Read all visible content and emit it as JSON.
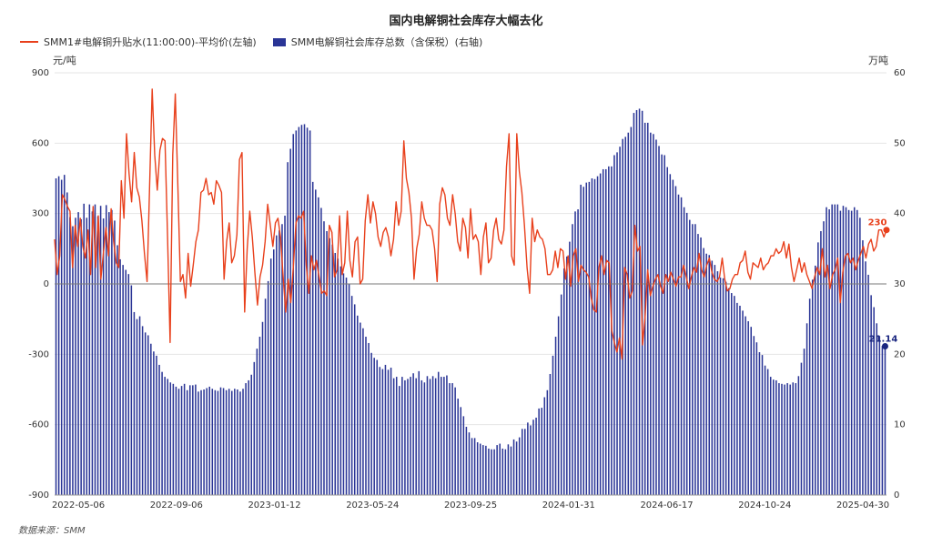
{
  "chart_data": {
    "type": "bar-line",
    "title": "国内电解铜社会库存大幅去化",
    "legend": [
      {
        "name": "SMM1#电解铜升贴水(11:00:00)-平均价(左轴)",
        "color": "#e8401c",
        "kind": "line"
      },
      {
        "name": "SMM电解铜社会库存总数（含保税）(右轴)",
        "color": "#2a3596",
        "kind": "bar"
      }
    ],
    "left_unit": "元/吨",
    "right_unit": "万吨",
    "left_ylim": [
      -900,
      900
    ],
    "right_ylim": [
      0,
      60
    ],
    "left_ticks": [
      "900",
      "600",
      "300",
      "0",
      "-300",
      "-600",
      "-900"
    ],
    "right_ticks": [
      "60",
      "50",
      "40",
      "30",
      "20",
      "10",
      "0"
    ],
    "x_labels": [
      "2022-05-06",
      "2022-09-06",
      "2023-01-12",
      "2023-05-24",
      "2023-09-25",
      "2024-01-31",
      "2024-06-17",
      "2024-10-24",
      "2025-04-30"
    ],
    "last_line_value": "230",
    "last_bar_value": "21.14",
    "line_series_name": "SMM1#电解铜升贴水(11:00:00)-平均价(左轴)",
    "line_values": [
      190,
      40,
      120,
      380,
      360,
      330,
      310,
      70,
      250,
      160,
      280,
      160,
      110,
      230,
      40,
      330,
      70,
      290,
      20,
      130,
      240,
      120,
      320,
      180,
      90,
      70,
      440,
      280,
      640,
      470,
      350,
      560,
      410,
      370,
      270,
      130,
      10,
      420,
      830,
      550,
      400,
      570,
      620,
      610,
      200,
      -250,
      550,
      810,
      420,
      10,
      40,
      -60,
      130,
      -10,
      80,
      180,
      230,
      390,
      400,
      450,
      380,
      390,
      340,
      440,
      420,
      390,
      20,
      180,
      260,
      90,
      120,
      210,
      530,
      560,
      -120,
      150,
      310,
      200,
      50,
      -90,
      30,
      80,
      180,
      340,
      250,
      160,
      260,
      280,
      200,
      30,
      -120,
      20,
      -80,
      80,
      260,
      290,
      280,
      310,
      80,
      -40,
      120,
      60,
      100,
      30,
      -40,
      -30,
      -50,
      250,
      220,
      30,
      60,
      290,
      40,
      90,
      310,
      100,
      30,
      180,
      200,
      0,
      20,
      270,
      380,
      260,
      350,
      300,
      200,
      160,
      220,
      240,
      200,
      120,
      190,
      350,
      250,
      310,
      610,
      450,
      390,
      280,
      20,
      150,
      210,
      350,
      280,
      250,
      250,
      230,
      150,
      10,
      340,
      410,
      380,
      280,
      250,
      380,
      300,
      180,
      140,
      280,
      240,
      110,
      320,
      190,
      210,
      180,
      40,
      200,
      260,
      90,
      110,
      230,
      280,
      190,
      170,
      230,
      500,
      640,
      120,
      80,
      640,
      480,
      390,
      250,
      70,
      -40,
      280,
      180,
      230,
      200,
      190,
      150,
      40,
      40,
      60,
      140,
      70,
      150,
      140,
      20,
      120,
      -10,
      120,
      150,
      10,
      80,
      60,
      50,
      30,
      -60,
      -110,
      -120,
      70,
      120,
      40,
      100,
      90,
      -200,
      -250,
      -290,
      -230,
      -320,
      70,
      40,
      -60,
      -30,
      250,
      140,
      160,
      -260,
      -140,
      60,
      -50,
      -10,
      20,
      40,
      -10,
      -40,
      40,
      10,
      50,
      20,
      -10,
      30,
      30,
      80,
      30,
      -20,
      30,
      70,
      50,
      130,
      60,
      30,
      80,
      110,
      50,
      20,
      10,
      30,
      110,
      20,
      -30,
      -20,
      20,
      40,
      40,
      90,
      100,
      140,
      50,
      20,
      90,
      80,
      70,
      110,
      60,
      80,
      90,
      120,
      120,
      150,
      130,
      140,
      180,
      110,
      170,
      70,
      10,
      60,
      110,
      50,
      90,
      40,
      10,
      -20,
      30,
      70,
      40,
      150,
      30,
      80,
      -20,
      40,
      60,
      110,
      -80,
      50,
      120,
      130,
      90,
      110,
      60,
      100,
      130,
      160,
      110,
      170,
      190,
      140,
      160,
      230,
      230,
      200,
      230
    ],
    "bar_series_name": "SMM电解铜社会库存总数（含保税）(右轴)",
    "bar_values": [
      45,
      45.3,
      44.8,
      45.5,
      43,
      39.5,
      38.2,
      39.4,
      40.2,
      39.2,
      41.4,
      39.4,
      41.3,
      40.3,
      41.3,
      39.6,
      41.1,
      39.3,
      41.2,
      40.2,
      40.5,
      39,
      35.5,
      33.5,
      32.7,
      32,
      31.4,
      29.8,
      26,
      25,
      25.4,
      24,
      23.1,
      22.7,
      21.5,
      20.4,
      19.8,
      18.5,
      17.5,
      16.8,
      16.5,
      16,
      15.8,
      15.4,
      15.1,
      15.5,
      15.8,
      14.9,
      15.6,
      15.6,
      15.7,
      14.7,
      14.9,
      15,
      15.2,
      15.4,
      15.1,
      14.9,
      14.8,
      15.3,
      15.2,
      14.9,
      15.1,
      14.8,
      15.1,
      15,
      14.7,
      15.1,
      15.9,
      16.3,
      17.1,
      18.9,
      20.8,
      22.5,
      24.6,
      27.9,
      30.4,
      33.6,
      34.9,
      36.9,
      37.6,
      38.5,
      39.7,
      47.3,
      49.2,
      51.3,
      51.8,
      52.3,
      52.6,
      52.7,
      52.2,
      51.8,
      44.5,
      43.4,
      42.3,
      40.8,
      38.9,
      37.5,
      36.5,
      35.6,
      34.4,
      33.6,
      32.5,
      31.5,
      30.9,
      30,
      28.3,
      27.1,
      25.5,
      24.5,
      23.7,
      22.5,
      21.6,
      20.2,
      19.5,
      19.2,
      18.2,
      17.9,
      18.5,
      17.8,
      18.1,
      16.6,
      16.8,
      15.5,
      16.8,
      16.3,
      16.5,
      16.8,
      17.3,
      16.6,
      17.6,
      16.3,
      16,
      16.9,
      16.5,
      16.9,
      16.6,
      17.5,
      16.8,
      16.8,
      17,
      15.9,
      15.9,
      15.3,
      13.7,
      12.5,
      11.2,
      9.7,
      8.9,
      8.1,
      8.1,
      7.5,
      7.3,
      7.1,
      7,
      6.6,
      6.5,
      6.5,
      7.1,
      7.3,
      6.6,
      6.5,
      7.2,
      6.9,
      7.9,
      7.6,
      8.2,
      9.4,
      9.4,
      10.3,
      9.9,
      10.7,
      11,
      12.3,
      12.4,
      13.9,
      14.9,
      17.2,
      19.8,
      22.5,
      25.4,
      28.5,
      32.2,
      33.9,
      36,
      38.5,
      40.3,
      40.6,
      44.1,
      43.8,
      44.4,
      44.5,
      45,
      44.9,
      45.3,
      45.7,
      46.3,
      46.3,
      46.7,
      46.7,
      48.3,
      48.7,
      49.5,
      50.6,
      50.9,
      51.5,
      52.3,
      54.3,
      54.7,
      54.9,
      54.6,
      52.9,
      52.9,
      51.5,
      51.3,
      50.5,
      49.6,
      48.4,
      48.3,
      46.6,
      45.6,
      44.8,
      43.9,
      42.7,
      42.3,
      40.9,
      40.1,
      39.1,
      38.5,
      38.5,
      37.1,
      36.6,
      35.1,
      34.3,
      34.1,
      33.3,
      32.7,
      31.8,
      30.9,
      30.8,
      30.3,
      29.4,
      28.7,
      28.3,
      27.3,
      26.9,
      26.2,
      25.4,
      24.7,
      23.9,
      22.6,
      21.7,
      20.3,
      19.9,
      18.4,
      17.9,
      16.8,
      16.4,
      16.3,
      15.9,
      15.8,
      15.7,
      15.9,
      15.7,
      16,
      15.9,
      16.9,
      18.8,
      20.8,
      24.4,
      27.9,
      30.6,
      32.6,
      35.9,
      37.5,
      38.9,
      40.9,
      40.6,
      41.3,
      41.3,
      41.3,
      40.4,
      41.1,
      40.9,
      40.5,
      40.4,
      40.9,
      40.5,
      39.4,
      36.2,
      33.2,
      31.3,
      28.4,
      26.7,
      24.4,
      22.6,
      21.2,
      21.14
    ]
  },
  "footer": {
    "source": "数据来源：SMM"
  }
}
